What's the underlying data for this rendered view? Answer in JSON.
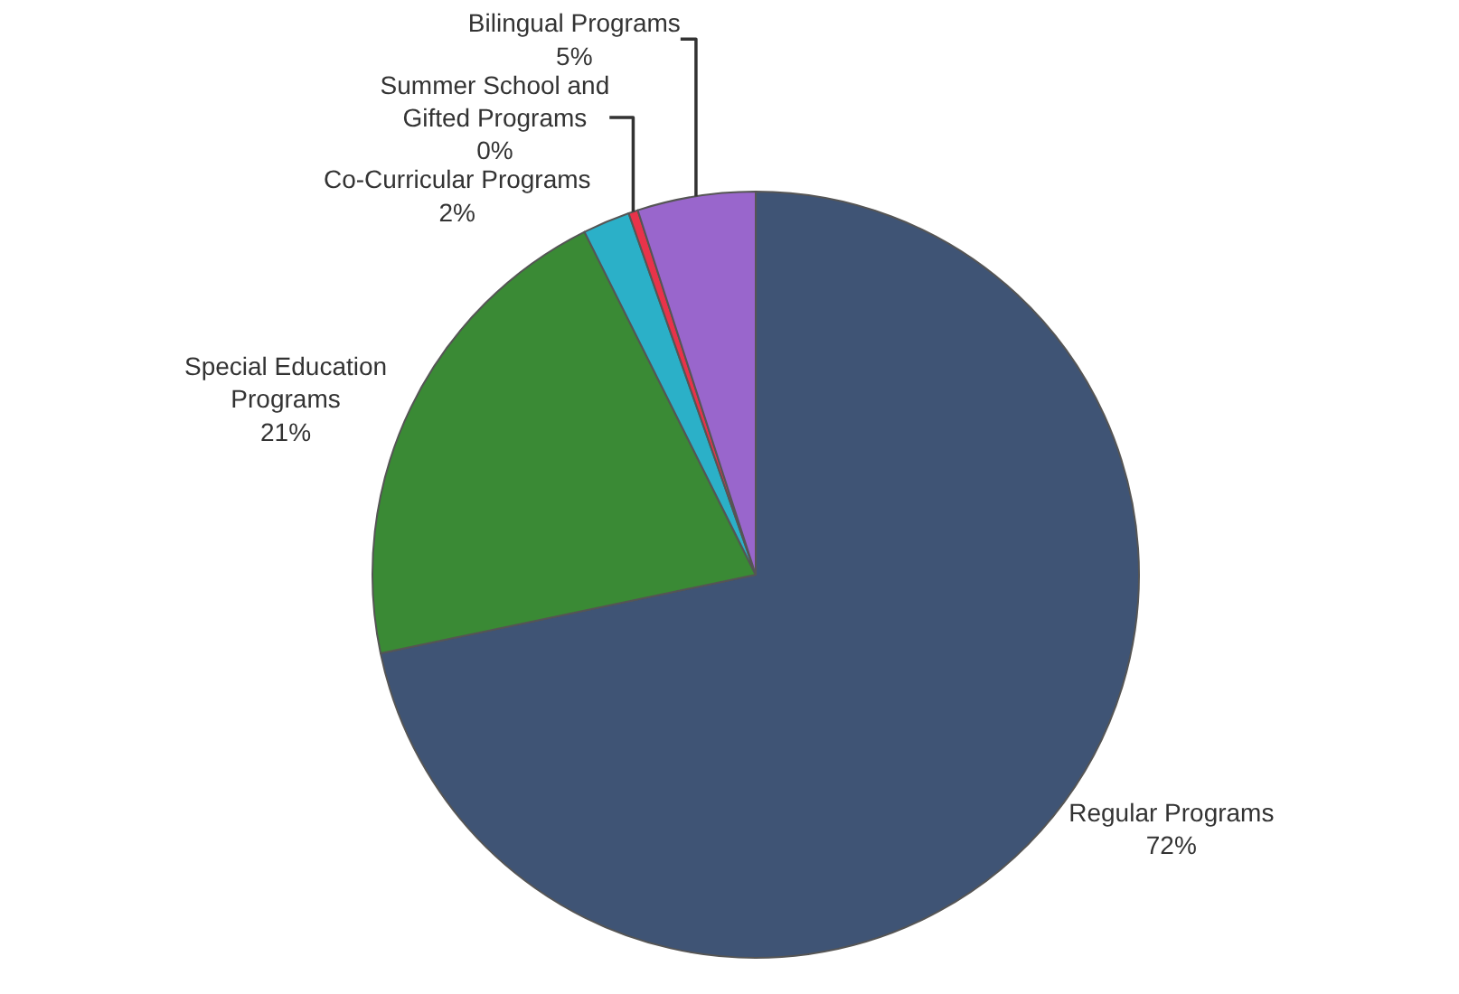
{
  "chart_data": {
    "type": "pie",
    "categories": [
      "Regular Programs",
      "Special Education Programs",
      "Co-Curricular Programs",
      "Summer School and Gifted Programs",
      "Bilingual Programs"
    ],
    "values": [
      72,
      21,
      2,
      0.4,
      5
    ],
    "value_labels": [
      "72%",
      "21%",
      "2%",
      "0%",
      "5%"
    ],
    "colors": [
      "#3f5475",
      "#3a8a35",
      "#2bb0c8",
      "#e8334a",
      "#9966cc"
    ],
    "legend": false
  }
}
